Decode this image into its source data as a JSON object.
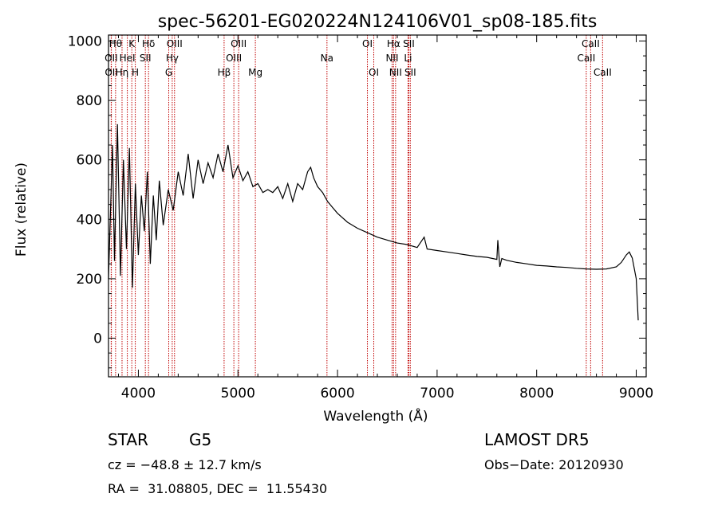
{
  "chart_data": {
    "type": "line",
    "title": "spec-56201-EG020224N124106V01_sp08-185.fits",
    "xlabel": "Wavelength (Å)",
    "ylabel": "Flux (relative)",
    "xlim": [
      3700,
      9100
    ],
    "ylim": [
      -130,
      1020
    ],
    "x_ticks": [
      4000,
      5000,
      6000,
      7000,
      8000,
      9000
    ],
    "y_ticks": [
      0,
      200,
      400,
      600,
      800,
      1000
    ],
    "grid": false,
    "series": [
      {
        "color": "#000000",
        "x": [
          3700,
          3740,
          3760,
          3790,
          3820,
          3850,
          3880,
          3910,
          3940,
          3970,
          4000,
          4030,
          4060,
          4090,
          4120,
          4150,
          4180,
          4210,
          4250,
          4300,
          4350,
          4400,
          4450,
          4500,
          4550,
          4600,
          4650,
          4700,
          4750,
          4800,
          4850,
          4900,
          4950,
          5000,
          5050,
          5100,
          5150,
          5200,
          5250,
          5300,
          5350,
          5400,
          5450,
          5500,
          5550,
          5600,
          5650,
          5700,
          5730,
          5760,
          5800,
          5850,
          5900,
          5950,
          6000,
          6100,
          6200,
          6300,
          6400,
          6500,
          6600,
          6700,
          6800,
          6870,
          6900,
          7000,
          7100,
          7200,
          7300,
          7400,
          7500,
          7600,
          7610,
          7630,
          7650,
          7700,
          7800,
          7900,
          8000,
          8100,
          8200,
          8300,
          8400,
          8500,
          8600,
          8700,
          8800,
          8850,
          8900,
          8930,
          8960,
          9000,
          9020
        ],
        "y": [
          200,
          650,
          260,
          720,
          210,
          600,
          300,
          640,
          170,
          520,
          280,
          480,
          360,
          560,
          250,
          480,
          330,
          530,
          380,
          500,
          430,
          560,
          480,
          620,
          470,
          600,
          520,
          590,
          540,
          620,
          560,
          650,
          540,
          580,
          530,
          560,
          510,
          520,
          490,
          500,
          490,
          510,
          470,
          520,
          460,
          520,
          500,
          560,
          575,
          540,
          510,
          490,
          460,
          440,
          420,
          390,
          370,
          355,
          340,
          330,
          320,
          315,
          305,
          340,
          300,
          295,
          290,
          285,
          280,
          275,
          272,
          265,
          330,
          240,
          268,
          262,
          255,
          250,
          245,
          243,
          240,
          238,
          235,
          233,
          232,
          233,
          240,
          255,
          280,
          290,
          270,
          200,
          60
        ]
      }
    ],
    "lines": [
      {
        "label": "OII",
        "x": 3727,
        "row": 1
      },
      {
        "label": "OII",
        "x": 3729,
        "row": 2
      },
      {
        "label": "Hθ",
        "x": 3771,
        "row": 0
      },
      {
        "label": "Hη",
        "x": 3836,
        "row": 2
      },
      {
        "label": "HeI",
        "x": 3889,
        "row": 1
      },
      {
        "label": "K",
        "x": 3934,
        "row": 0
      },
      {
        "label": "H",
        "x": 3969,
        "row": 2
      },
      {
        "label": "SII",
        "x": 4070,
        "row": 1
      },
      {
        "label": "Hδ",
        "x": 4102,
        "row": 0
      },
      {
        "label": "G",
        "x": 4305,
        "row": 2
      },
      {
        "label": "Hγ",
        "x": 4340,
        "row": 1
      },
      {
        "label": "OIII",
        "x": 4363,
        "row": 0
      },
      {
        "label": "Hβ",
        "x": 4861,
        "row": 2
      },
      {
        "label": "OIII",
        "x": 4959,
        "row": 1
      },
      {
        "label": "OIII",
        "x": 5007,
        "row": 0
      },
      {
        "label": "Mg",
        "x": 5175,
        "row": 2
      },
      {
        "label": "Na",
        "x": 5894,
        "row": 1
      },
      {
        "label": "OI",
        "x": 6300,
        "row": 0
      },
      {
        "label": "OI",
        "x": 6364,
        "row": 2
      },
      {
        "label": "NII",
        "x": 6548,
        "row": 1
      },
      {
        "label": "Hα",
        "x": 6563,
        "row": 0
      },
      {
        "label": "NII",
        "x": 6583,
        "row": 2
      },
      {
        "label": "Li",
        "x": 6708,
        "row": 1
      },
      {
        "label": "SII",
        "x": 6716,
        "row": 0
      },
      {
        "label": "SII",
        "x": 6731,
        "row": 2
      },
      {
        "label": "CaII",
        "x": 8498,
        "row": 1
      },
      {
        "label": "CaII",
        "x": 8542,
        "row": 0
      },
      {
        "label": "CaII",
        "x": 8662,
        "row": 2
      }
    ]
  },
  "info": {
    "object_class": "STAR",
    "subclass": "G5",
    "survey": "LAMOST DR5",
    "cz": "cz = −48.8 ± 12.7 km/s",
    "obs_date": "Obs−Date: 20120930",
    "coords": "RA =  31.08805, DEC =  11.55430"
  }
}
